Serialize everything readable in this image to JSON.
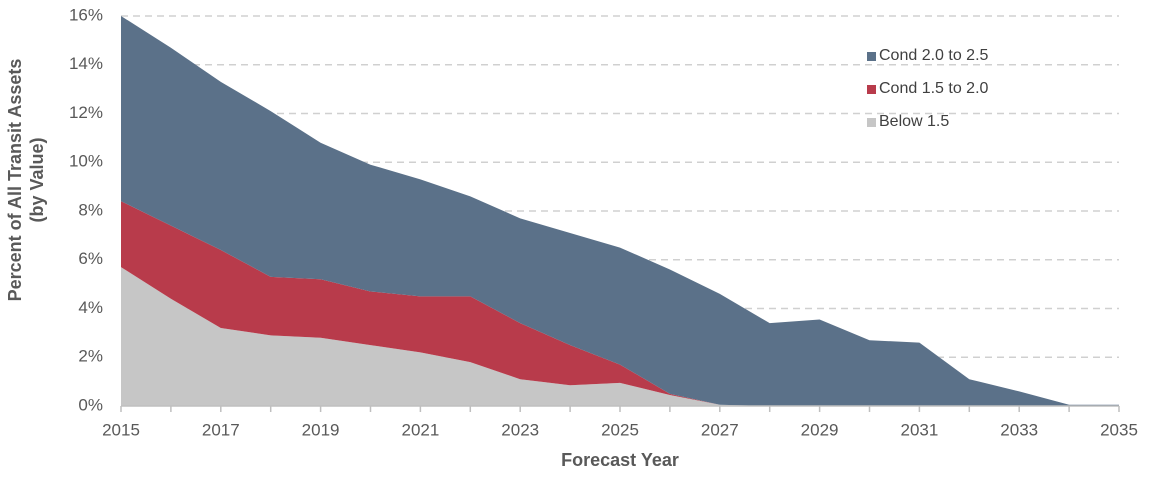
{
  "chart_data": {
    "type": "stacked-area",
    "x": [
      2015,
      2016,
      2017,
      2018,
      2019,
      2020,
      2021,
      2022,
      2023,
      2024,
      2025,
      2026,
      2027,
      2028,
      2029,
      2030,
      2031,
      2032,
      2033,
      2034,
      2035
    ],
    "series": [
      {
        "name": "Below 1.5",
        "color": "#c6c6c6",
        "values": [
          5.7,
          4.4,
          3.2,
          2.9,
          2.8,
          2.5,
          2.2,
          1.8,
          1.1,
          0.85,
          0.95,
          0.45,
          0.05,
          0,
          0,
          0,
          0,
          0,
          0,
          0,
          0
        ]
      },
      {
        "name": "Cond 1.5 to 2.0",
        "color": "#b83b4b",
        "values": [
          2.7,
          3.0,
          3.2,
          2.4,
          2.4,
          2.2,
          2.3,
          2.7,
          2.3,
          1.65,
          0.75,
          0.05,
          0,
          0,
          0,
          0,
          0,
          0,
          0,
          0,
          0
        ]
      },
      {
        "name": "Cond 2.0 to 2.5",
        "color": "#5b7189",
        "values": [
          7.6,
          7.3,
          6.9,
          6.8,
          5.6,
          5.2,
          4.8,
          4.1,
          4.3,
          4.6,
          4.8,
          5.1,
          4.55,
          3.4,
          3.55,
          2.7,
          2.6,
          1.1,
          0.6,
          0.05,
          0.05
        ]
      }
    ],
    "xlabel": "Forecast Year",
    "ylabel": [
      "Percent of All Transit Assets",
      "(by Value)"
    ],
    "xlim": [
      2015,
      2035
    ],
    "xticks": [
      2015,
      2017,
      2019,
      2021,
      2023,
      2025,
      2027,
      2029,
      2031,
      2033,
      2035
    ],
    "ylim": [
      0,
      16
    ],
    "yticks": [
      {
        "value": 0,
        "label": "0%"
      },
      {
        "value": 2,
        "label": "2%"
      },
      {
        "value": 4,
        "label": "4%"
      },
      {
        "value": 6,
        "label": "6%"
      },
      {
        "value": 8,
        "label": "8%"
      },
      {
        "value": 10,
        "label": "10%"
      },
      {
        "value": 12,
        "label": "12%"
      },
      {
        "value": 14,
        "label": "14%"
      },
      {
        "value": 16,
        "label": "16%"
      }
    ],
    "grid": true,
    "legend": "upper-right"
  }
}
